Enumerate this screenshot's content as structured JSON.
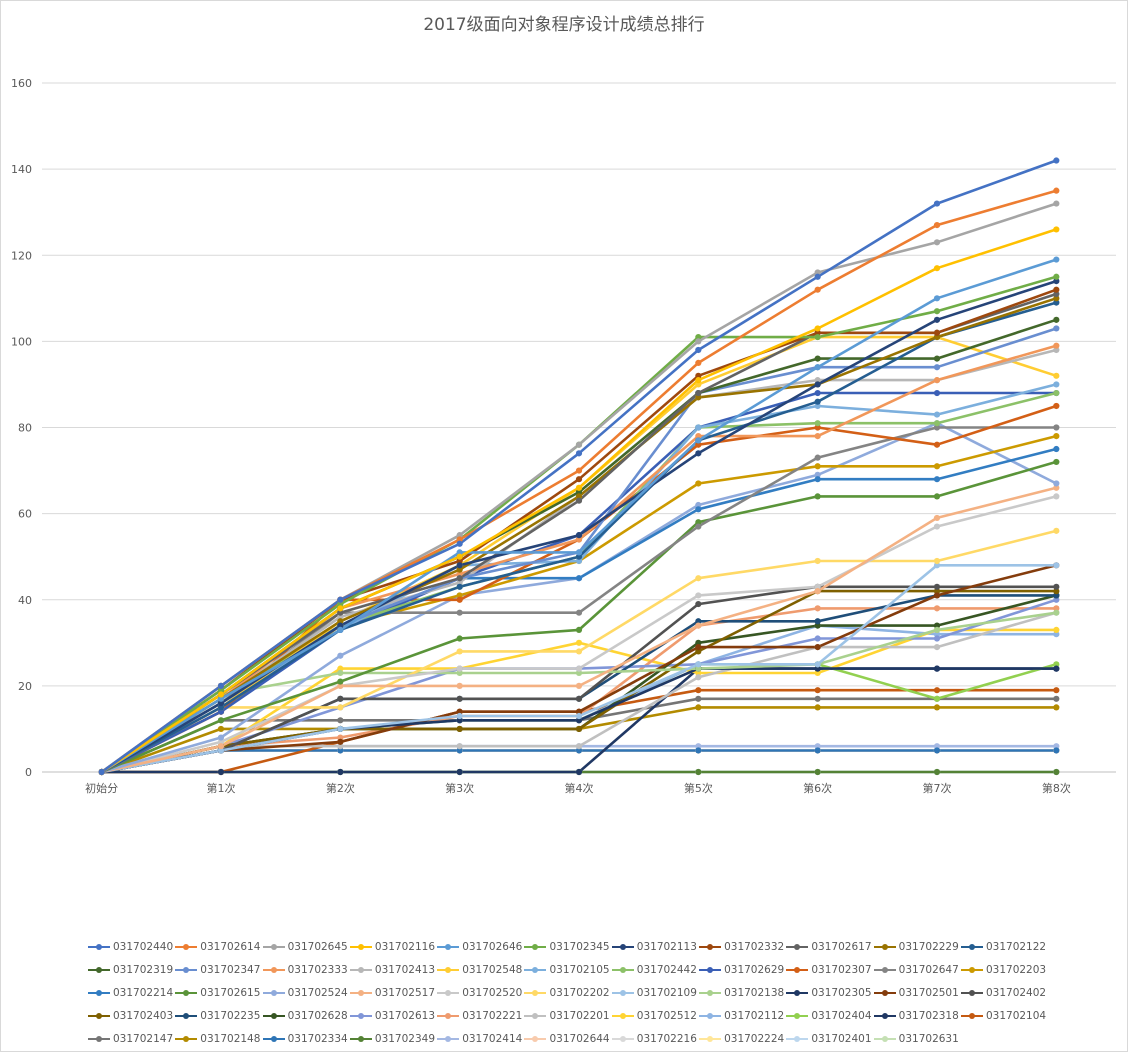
{
  "chart_data": {
    "type": "line",
    "title": "2017级面向对象程序设计成绩总排行",
    "categories": [
      "初始分",
      "第1次",
      "第2次",
      "第3次",
      "第4次",
      "第5次",
      "第6次",
      "第7次",
      "第8次"
    ],
    "ylim": [
      0,
      160
    ],
    "yticks": [
      0,
      20,
      40,
      60,
      80,
      100,
      120,
      140,
      160
    ],
    "grid": true,
    "legend": "bottom",
    "series": [
      {
        "name": "031702440",
        "color": "#4472C4",
        "values": [
          0,
          20,
          40,
          53,
          74,
          98,
          115,
          132,
          142
        ]
      },
      {
        "name": "031702614",
        "color": "#ED7D31",
        "values": [
          0,
          20,
          40,
          54,
          70,
          95,
          112,
          127,
          135
        ]
      },
      {
        "name": "031702645",
        "color": "#A5A5A5",
        "values": [
          0,
          20,
          40,
          55,
          76,
          100,
          116,
          123,
          132
        ]
      },
      {
        "name": "031702116",
        "color": "#FFC000",
        "values": [
          0,
          18,
          38,
          50,
          66,
          91,
          103,
          117,
          126
        ]
      },
      {
        "name": "031702646",
        "color": "#5B9BD5",
        "values": [
          0,
          17,
          33,
          51,
          51,
          77,
          94,
          110,
          119
        ]
      },
      {
        "name": "031702345",
        "color": "#70AD47",
        "values": [
          0,
          19,
          39,
          54,
          76,
          101,
          101,
          107,
          115
        ]
      },
      {
        "name": "031702113",
        "color": "#264478",
        "values": [
          0,
          16,
          34,
          48,
          55,
          74,
          90,
          105,
          114
        ]
      },
      {
        "name": "031702332",
        "color": "#9E480E",
        "values": [
          0,
          19,
          40,
          49,
          68,
          92,
          102,
          102,
          112
        ]
      },
      {
        "name": "031702617",
        "color": "#636363",
        "values": [
          0,
          18,
          37,
          45,
          63,
          88,
          102,
          102,
          111
        ]
      },
      {
        "name": "031702229",
        "color": "#997300",
        "values": [
          0,
          17,
          35,
          47,
          64,
          87,
          90,
          101,
          110
        ]
      },
      {
        "name": "031702122",
        "color": "#255E91",
        "values": [
          0,
          15,
          33,
          43,
          50,
          77,
          86,
          101,
          109
        ]
      },
      {
        "name": "031702319",
        "color": "#43682B",
        "values": [
          0,
          18,
          38,
          50,
          65,
          88,
          96,
          96,
          105
        ]
      },
      {
        "name": "031702347",
        "color": "#698ED0",
        "values": [
          0,
          16,
          34,
          45,
          51,
          88,
          94,
          94,
          103
        ]
      },
      {
        "name": "031702333",
        "color": "#F1975A",
        "values": [
          0,
          17,
          38,
          46,
          54,
          78,
          78,
          91,
          99
        ]
      },
      {
        "name": "031702413",
        "color": "#B7B7B7",
        "values": [
          0,
          17,
          36,
          44,
          64,
          87,
          91,
          91,
          98
        ]
      },
      {
        "name": "031702548",
        "color": "#FFCD33",
        "values": [
          0,
          15,
          35,
          48,
          66,
          90,
          101,
          101,
          92
        ]
      },
      {
        "name": "031702105",
        "color": "#7CAFDD",
        "values": [
          0,
          16,
          33,
          48,
          49,
          80,
          85,
          83,
          90
        ]
      },
      {
        "name": "031702442",
        "color": "#8CC168",
        "values": [
          0,
          17,
          34,
          43,
          50,
          80,
          81,
          81,
          88
        ]
      },
      {
        "name": "031702629",
        "color": "#3A5FB6",
        "values": [
          0,
          14,
          33,
          45,
          55,
          80,
          88,
          88,
          88
        ]
      },
      {
        "name": "031702307",
        "color": "#D35F16",
        "values": [
          0,
          14,
          40,
          40,
          54,
          76,
          80,
          76,
          85
        ]
      },
      {
        "name": "031702647",
        "color": "#848484",
        "values": [
          0,
          16,
          37,
          37,
          37,
          57,
          73,
          80,
          80
        ]
      },
      {
        "name": "031702203",
        "color": "#CC9A00",
        "values": [
          0,
          14,
          34,
          41,
          49,
          67,
          71,
          71,
          78
        ]
      },
      {
        "name": "031702214",
        "color": "#327DC2",
        "values": [
          0,
          15,
          34,
          45,
          45,
          61,
          68,
          68,
          75
        ]
      },
      {
        "name": "031702615",
        "color": "#5A9439",
        "values": [
          0,
          12,
          21,
          31,
          33,
          58,
          64,
          64,
          72
        ]
      },
      {
        "name": "031702524",
        "color": "#8FAADC",
        "values": [
          0,
          8,
          27,
          41,
          45,
          62,
          69,
          81,
          67
        ]
      },
      {
        "name": "031702517",
        "color": "#F4B183",
        "values": [
          0,
          6,
          20,
          20,
          20,
          34,
          42,
          59,
          66
        ]
      },
      {
        "name": "031702520",
        "color": "#C9C9C9",
        "values": [
          0,
          7,
          20,
          24,
          24,
          41,
          43,
          57,
          64
        ]
      },
      {
        "name": "031702202",
        "color": "#FFD966",
        "values": [
          0,
          15,
          15,
          28,
          28,
          45,
          49,
          49,
          56
        ]
      },
      {
        "name": "031702109",
        "color": "#9DC3E6",
        "values": [
          0,
          5,
          10,
          13,
          13,
          25,
          25,
          48,
          48
        ]
      },
      {
        "name": "031702138",
        "color": "#A9D18E",
        "values": [
          0,
          18,
          23,
          23,
          23,
          24,
          25,
          33,
          37
        ]
      },
      {
        "name": "031702305",
        "color": "#1F3864",
        "values": [
          0,
          5,
          10,
          12,
          12,
          24,
          24,
          24,
          24
        ]
      },
      {
        "name": "031702501",
        "color": "#843C0C",
        "values": [
          0,
          5,
          7,
          14,
          14,
          29,
          29,
          41,
          48
        ]
      },
      {
        "name": "031702402",
        "color": "#525252",
        "values": [
          0,
          5,
          17,
          17,
          17,
          39,
          43,
          43,
          43
        ]
      },
      {
        "name": "031702403",
        "color": "#7F6000",
        "values": [
          0,
          6,
          10,
          10,
          10,
          28,
          42,
          42,
          42
        ]
      },
      {
        "name": "031702235",
        "color": "#1F4E79",
        "values": [
          0,
          5,
          17,
          17,
          17,
          35,
          35,
          41,
          41
        ]
      },
      {
        "name": "031702628",
        "color": "#375623",
        "values": [
          0,
          6,
          10,
          10,
          10,
          30,
          34,
          34,
          41
        ]
      },
      {
        "name": "031702613",
        "color": "#8196D8",
        "values": [
          0,
          6,
          15,
          24,
          24,
          25,
          31,
          31,
          40
        ]
      },
      {
        "name": "031702221",
        "color": "#EF9B6E",
        "values": [
          0,
          6,
          8,
          13,
          13,
          34,
          38,
          38,
          38
        ]
      },
      {
        "name": "031702201",
        "color": "#C0C0C0",
        "values": [
          0,
          6,
          6,
          6,
          6,
          22,
          29,
          29,
          37
        ]
      },
      {
        "name": "031702512",
        "color": "#FFD433",
        "values": [
          0,
          6,
          24,
          24,
          30,
          23,
          23,
          33,
          33
        ]
      },
      {
        "name": "031702112",
        "color": "#8EB4E3",
        "values": [
          0,
          5,
          10,
          12,
          12,
          25,
          34,
          32,
          32
        ]
      },
      {
        "name": "031702404",
        "color": "#92D050",
        "values": [
          0,
          6,
          10,
          12,
          12,
          25,
          25,
          17,
          25
        ]
      },
      {
        "name": "031702318",
        "color": "#203864",
        "values": [
          0,
          0,
          0,
          0,
          0,
          24,
          24,
          24,
          24
        ]
      },
      {
        "name": "031702104",
        "color": "#C55A11",
        "values": [
          0,
          0,
          7,
          14,
          14,
          19,
          19,
          19,
          19
        ]
      },
      {
        "name": "031702147",
        "color": "#757575",
        "values": [
          0,
          12,
          12,
          12,
          12,
          17,
          17,
          17,
          17
        ]
      },
      {
        "name": "031702148",
        "color": "#B38B00",
        "values": [
          0,
          10,
          10,
          10,
          10,
          15,
          15,
          15,
          15
        ]
      },
      {
        "name": "031702334",
        "color": "#2E75B6",
        "values": [
          0,
          5,
          5,
          5,
          5,
          5,
          5,
          5,
          5
        ]
      },
      {
        "name": "031702349",
        "color": "#548235",
        "values": [
          0,
          0,
          0,
          0,
          0,
          0,
          0,
          0,
          0
        ]
      },
      {
        "name": "031702414",
        "color": "#A4B8E3",
        "values": [
          0,
          6,
          6,
          6,
          6,
          6,
          6,
          6,
          6
        ]
      },
      {
        "name": "031702644",
        "color": "#F8CBAD",
        "values": [
          0,
          5,
          5,
          5,
          5,
          5,
          5,
          5,
          5
        ]
      },
      {
        "name": "031702216",
        "color": "#D9D9D9",
        "values": [
          0,
          5,
          5,
          5,
          5,
          5,
          5,
          5,
          5
        ]
      },
      {
        "name": "031702224",
        "color": "#FFE699",
        "values": [
          0,
          5,
          5,
          5,
          5,
          5,
          5,
          5,
          5
        ]
      },
      {
        "name": "031702401",
        "color": "#BDD7EE",
        "values": [
          0,
          0,
          0,
          0,
          0,
          0,
          0,
          0,
          0
        ]
      },
      {
        "name": "031702631",
        "color": "#C5E0B4",
        "values": [
          0,
          0,
          0,
          0,
          0,
          0,
          0,
          0,
          0
        ]
      }
    ]
  }
}
